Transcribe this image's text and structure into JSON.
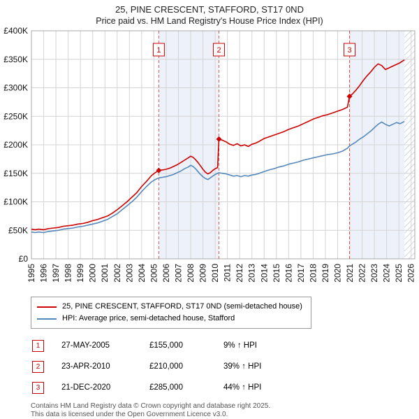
{
  "title": "25, PINE CRESCENT, STAFFORD, ST17 0ND",
  "subtitle": "Price paid vs. HM Land Registry's House Price Index (HPI)",
  "legend": [
    {
      "label": "25, PINE CRESCENT, STAFFORD, ST17 0ND (semi-detached house)",
      "color": "#cc0000"
    },
    {
      "label": "HPI: Average price, semi-detached house, Stafford",
      "color": "#5588bb"
    }
  ],
  "sales": [
    {
      "n": "1",
      "date": "27-MAY-2005",
      "price": "£155,000",
      "hpi": "9% ↑ HPI"
    },
    {
      "n": "2",
      "date": "23-APR-2010",
      "price": "£210,000",
      "hpi": "39% ↑ HPI"
    },
    {
      "n": "3",
      "date": "21-DEC-2020",
      "price": "£285,000",
      "hpi": "44% ↑ HPI"
    }
  ],
  "footer": {
    "line1": "Contains HM Land Registry data © Crown copyright and database right 2025.",
    "line2": "This data is licensed under the Open Government Licence v3.0."
  },
  "chart_data": {
    "type": "line",
    "title": "25, PINE CRESCENT, STAFFORD, ST17 0ND",
    "subtitle": "Price paid vs. HM Land Registry's House Price Index (HPI)",
    "xlabel": "",
    "ylabel": "",
    "units": "GBP thousands",
    "xlim": [
      1995,
      2026.3
    ],
    "ylim": [
      0,
      400
    ],
    "grid": true,
    "legend_position": "below",
    "yticks": [
      {
        "v": 0,
        "label": "£0"
      },
      {
        "v": 50,
        "label": "£50K"
      },
      {
        "v": 100,
        "label": "£100K"
      },
      {
        "v": 150,
        "label": "£150K"
      },
      {
        "v": 200,
        "label": "£200K"
      },
      {
        "v": 250,
        "label": "£250K"
      },
      {
        "v": 300,
        "label": "£300K"
      },
      {
        "v": 350,
        "label": "£350K"
      },
      {
        "v": 400,
        "label": "£400K"
      }
    ],
    "xticks": [
      1995,
      1996,
      1997,
      1998,
      1999,
      2000,
      2001,
      2002,
      2003,
      2004,
      2005,
      2006,
      2007,
      2008,
      2009,
      2010,
      2011,
      2012,
      2013,
      2014,
      2015,
      2016,
      2017,
      2018,
      2019,
      2020,
      2021,
      2022,
      2023,
      2024,
      2025,
      2026
    ],
    "colors": {
      "red": "#cc0000",
      "blue": "#5588bb",
      "band": "#edf2fa",
      "hatch": "#b9c8de",
      "grid": "#d4d4d4",
      "border": "#aaaaaa"
    },
    "bands": [
      {
        "from": 2005.4,
        "to": 2010.31
      },
      {
        "from": 2020.97,
        "to": 2025.45
      }
    ],
    "hatch_band": {
      "from": 2025.45,
      "to": 2026.3
    },
    "sale_points": [
      {
        "n": "1",
        "x": 2005.4,
        "y": 155
      },
      {
        "n": "2",
        "x": 2010.31,
        "y": 210
      },
      {
        "n": "3",
        "x": 2020.97,
        "y": 285
      }
    ],
    "series": [
      {
        "name": "price-paid",
        "label": "25, PINE CRESCENT, STAFFORD, ST17 0ND (semi-detached house)",
        "color": "#cc0000",
        "points": [
          [
            1995.0,
            52
          ],
          [
            1995.3,
            51
          ],
          [
            1995.6,
            52
          ],
          [
            1996.0,
            51
          ],
          [
            1996.4,
            53
          ],
          [
            1996.8,
            54
          ],
          [
            1997.2,
            55
          ],
          [
            1997.6,
            57
          ],
          [
            1998.0,
            58
          ],
          [
            1998.4,
            59
          ],
          [
            1998.8,
            61
          ],
          [
            1999.2,
            62
          ],
          [
            1999.6,
            64
          ],
          [
            2000.0,
            67
          ],
          [
            2000.4,
            69
          ],
          [
            2000.8,
            72
          ],
          [
            2001.2,
            75
          ],
          [
            2001.6,
            80
          ],
          [
            2002.0,
            86
          ],
          [
            2002.4,
            93
          ],
          [
            2002.8,
            100
          ],
          [
            2003.2,
            108
          ],
          [
            2003.6,
            116
          ],
          [
            2004.0,
            127
          ],
          [
            2004.4,
            136
          ],
          [
            2004.8,
            146
          ],
          [
            2005.1,
            151
          ],
          [
            2005.4,
            155
          ],
          [
            2005.7,
            156
          ],
          [
            2006.0,
            157
          ],
          [
            2006.3,
            159
          ],
          [
            2006.6,
            162
          ],
          [
            2006.9,
            165
          ],
          [
            2007.2,
            169
          ],
          [
            2007.5,
            173
          ],
          [
            2007.8,
            177
          ],
          [
            2008.0,
            180
          ],
          [
            2008.2,
            178
          ],
          [
            2008.4,
            174
          ],
          [
            2008.6,
            169
          ],
          [
            2008.8,
            163
          ],
          [
            2009.0,
            157
          ],
          [
            2009.2,
            152
          ],
          [
            2009.4,
            149
          ],
          [
            2009.6,
            151
          ],
          [
            2009.8,
            155
          ],
          [
            2010.0,
            158
          ],
          [
            2010.2,
            160
          ],
          [
            2010.31,
            210
          ],
          [
            2010.6,
            208
          ],
          [
            2010.9,
            205
          ],
          [
            2011.2,
            201
          ],
          [
            2011.5,
            199
          ],
          [
            2011.8,
            202
          ],
          [
            2012.1,
            198
          ],
          [
            2012.4,
            200
          ],
          [
            2012.7,
            197
          ],
          [
            2013.0,
            201
          ],
          [
            2013.3,
            203
          ],
          [
            2013.6,
            206
          ],
          [
            2014.0,
            211
          ],
          [
            2014.4,
            214
          ],
          [
            2014.8,
            217
          ],
          [
            2015.2,
            220
          ],
          [
            2015.6,
            223
          ],
          [
            2016.0,
            227
          ],
          [
            2016.4,
            230
          ],
          [
            2016.8,
            233
          ],
          [
            2017.2,
            237
          ],
          [
            2017.6,
            241
          ],
          [
            2018.0,
            245
          ],
          [
            2018.4,
            248
          ],
          [
            2018.8,
            251
          ],
          [
            2019.2,
            253
          ],
          [
            2019.6,
            256
          ],
          [
            2020.0,
            259
          ],
          [
            2020.4,
            262
          ],
          [
            2020.8,
            266
          ],
          [
            2020.97,
            285
          ],
          [
            2021.2,
            289
          ],
          [
            2021.5,
            296
          ],
          [
            2021.8,
            304
          ],
          [
            2022.1,
            313
          ],
          [
            2022.4,
            321
          ],
          [
            2022.7,
            328
          ],
          [
            2023.0,
            336
          ],
          [
            2023.3,
            342
          ],
          [
            2023.6,
            339
          ],
          [
            2023.9,
            332
          ],
          [
            2024.2,
            335
          ],
          [
            2024.5,
            338
          ],
          [
            2024.8,
            341
          ],
          [
            2025.1,
            344
          ],
          [
            2025.45,
            349
          ]
        ]
      },
      {
        "name": "hpi",
        "label": "HPI: Average price, semi-detached house, Stafford",
        "color": "#5588bb",
        "points": [
          [
            1995.0,
            47
          ],
          [
            1995.3,
            46
          ],
          [
            1995.6,
            47
          ],
          [
            1996.0,
            46
          ],
          [
            1996.4,
            48
          ],
          [
            1996.8,
            49
          ],
          [
            1997.2,
            50
          ],
          [
            1997.6,
            52
          ],
          [
            1998.0,
            53
          ],
          [
            1998.4,
            54
          ],
          [
            1998.8,
            56
          ],
          [
            1999.2,
            57
          ],
          [
            1999.6,
            59
          ],
          [
            2000.0,
            61
          ],
          [
            2000.4,
            63
          ],
          [
            2000.8,
            66
          ],
          [
            2001.2,
            69
          ],
          [
            2001.6,
            74
          ],
          [
            2002.0,
            79
          ],
          [
            2002.4,
            86
          ],
          [
            2002.8,
            93
          ],
          [
            2003.2,
            100
          ],
          [
            2003.6,
            108
          ],
          [
            2004.0,
            118
          ],
          [
            2004.4,
            127
          ],
          [
            2004.8,
            135
          ],
          [
            2005.1,
            139
          ],
          [
            2005.4,
            142
          ],
          [
            2005.7,
            143
          ],
          [
            2006.0,
            144
          ],
          [
            2006.3,
            146
          ],
          [
            2006.6,
            148
          ],
          [
            2006.9,
            151
          ],
          [
            2007.2,
            154
          ],
          [
            2007.5,
            158
          ],
          [
            2007.8,
            161
          ],
          [
            2008.0,
            164
          ],
          [
            2008.2,
            162
          ],
          [
            2008.4,
            158
          ],
          [
            2008.6,
            153
          ],
          [
            2008.8,
            148
          ],
          [
            2009.0,
            144
          ],
          [
            2009.2,
            141
          ],
          [
            2009.4,
            139
          ],
          [
            2009.6,
            142
          ],
          [
            2009.8,
            145
          ],
          [
            2010.0,
            148
          ],
          [
            2010.31,
            151
          ],
          [
            2010.6,
            150
          ],
          [
            2010.9,
            149
          ],
          [
            2011.2,
            147
          ],
          [
            2011.5,
            145
          ],
          [
            2011.8,
            146
          ],
          [
            2012.1,
            144
          ],
          [
            2012.4,
            146
          ],
          [
            2012.7,
            145
          ],
          [
            2013.0,
            147
          ],
          [
            2013.3,
            148
          ],
          [
            2013.6,
            150
          ],
          [
            2014.0,
            153
          ],
          [
            2014.4,
            156
          ],
          [
            2014.8,
            158
          ],
          [
            2015.2,
            161
          ],
          [
            2015.6,
            163
          ],
          [
            2016.0,
            166
          ],
          [
            2016.4,
            168
          ],
          [
            2016.8,
            170
          ],
          [
            2017.2,
            173
          ],
          [
            2017.6,
            175
          ],
          [
            2018.0,
            177
          ],
          [
            2018.4,
            179
          ],
          [
            2018.8,
            181
          ],
          [
            2019.2,
            183
          ],
          [
            2019.6,
            184
          ],
          [
            2020.0,
            186
          ],
          [
            2020.4,
            189
          ],
          [
            2020.8,
            194
          ],
          [
            2020.97,
            198
          ],
          [
            2021.2,
            201
          ],
          [
            2021.5,
            205
          ],
          [
            2021.8,
            210
          ],
          [
            2022.1,
            214
          ],
          [
            2022.4,
            219
          ],
          [
            2022.7,
            224
          ],
          [
            2023.0,
            230
          ],
          [
            2023.3,
            236
          ],
          [
            2023.6,
            240
          ],
          [
            2023.9,
            236
          ],
          [
            2024.2,
            233
          ],
          [
            2024.5,
            236
          ],
          [
            2024.8,
            239
          ],
          [
            2025.1,
            237
          ],
          [
            2025.45,
            241
          ]
        ]
      }
    ]
  }
}
